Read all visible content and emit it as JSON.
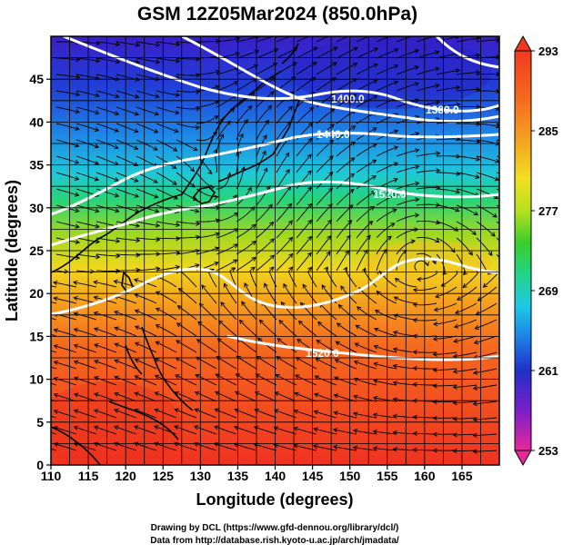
{
  "title": "GSM 12Z05Mar2024 (850.0hPa)",
  "axes": {
    "xlabel": "Longitude (degrees)",
    "ylabel": "Latitude (degrees)",
    "x_ticks": [
      "110",
      "115",
      "120",
      "125",
      "130",
      "135",
      "140",
      "145",
      "150",
      "155",
      "160",
      "165"
    ],
    "y_ticks": [
      "0",
      "5",
      "10",
      "15",
      "20",
      "25",
      "30",
      "35",
      "40",
      "45"
    ],
    "x_values": [
      110,
      115,
      120,
      125,
      130,
      135,
      140,
      145,
      150,
      155,
      160,
      165
    ],
    "y_values": [
      0,
      5,
      10,
      15,
      20,
      25,
      30,
      35,
      40,
      45
    ],
    "xlim": [
      110,
      170
    ],
    "ylim": [
      0,
      50
    ]
  },
  "colorbar": {
    "labels": [
      "293",
      "285",
      "277",
      "269",
      "261",
      "253"
    ],
    "values": [
      293,
      285,
      277,
      269,
      261,
      253
    ],
    "range": [
      253,
      293
    ],
    "colors": [
      "#e8289a",
      "#7a1fc8",
      "#2030c8",
      "#1e7ee6",
      "#1ec8e6",
      "#22d48a",
      "#3acd2a",
      "#b6e01e",
      "#f0e020",
      "#f5a020",
      "#f56a1e",
      "#f03a20"
    ]
  },
  "contours": [
    {
      "label": "1400.0"
    },
    {
      "label": "1380.0"
    },
    {
      "label": "1440.0"
    },
    {
      "label": "1520.0"
    },
    {
      "label": "1520.0"
    }
  ],
  "credits": {
    "line1": "Drawing by DCL (https://www.gfd-dennou.org/library/dcl/)",
    "line2": "Data from http://database.rish.kyoto-u.ac.jp/arch/jmadata/"
  }
}
